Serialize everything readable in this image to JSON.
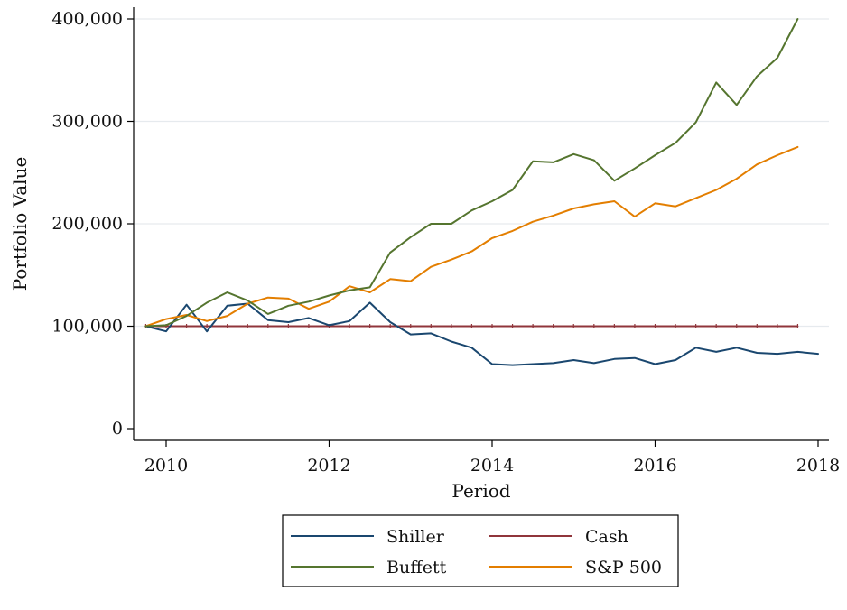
{
  "chart_data": {
    "type": "line",
    "title": "",
    "xlabel": "Period",
    "ylabel": "Portfolio Value",
    "xlim": [
      2009.75,
      2018.0
    ],
    "ylim": [
      0,
      400000
    ],
    "x_ticks": [
      2010,
      2012,
      2014,
      2016,
      2018
    ],
    "x_tick_labels": [
      "2010",
      "2012",
      "2014",
      "2016",
      "2018"
    ],
    "y_ticks": [
      0,
      100000,
      200000,
      300000,
      400000
    ],
    "y_tick_labels": [
      "0",
      "100,000",
      "200,000",
      "300,000",
      "400,000"
    ],
    "grid": "horizontal",
    "legend_position": "bottom",
    "series": [
      {
        "name": "Shiller",
        "color": "#1a476f",
        "x": [
          2009.75,
          2010.0,
          2010.25,
          2010.5,
          2010.75,
          2011.0,
          2011.25,
          2011.5,
          2011.75,
          2012.0,
          2012.25,
          2012.5,
          2012.75,
          2013.0,
          2013.25,
          2013.5,
          2013.75,
          2014.0,
          2014.25,
          2014.5,
          2014.75,
          2015.0,
          2015.25,
          2015.5,
          2015.75,
          2016.0,
          2016.25,
          2016.5,
          2016.75,
          2017.0,
          2017.25,
          2017.5,
          2017.75,
          2018.0
        ],
        "y": [
          100000,
          95000,
          121000,
          95000,
          120000,
          122000,
          106000,
          104000,
          108000,
          101000,
          105000,
          123000,
          104000,
          92000,
          93000,
          85000,
          79000,
          63000,
          62000,
          63000,
          64000,
          67000,
          64000,
          68000,
          69000,
          63000,
          67000,
          79000,
          75000,
          79000,
          74000,
          73000,
          75000,
          73000
        ]
      },
      {
        "name": "Cash",
        "color": "#90353b",
        "x": [
          2009.75,
          2010.0,
          2010.25,
          2010.5,
          2010.75,
          2011.0,
          2011.25,
          2011.5,
          2011.75,
          2012.0,
          2012.25,
          2012.5,
          2012.75,
          2013.0,
          2013.25,
          2013.5,
          2013.75,
          2014.0,
          2014.25,
          2014.5,
          2014.75,
          2015.0,
          2015.25,
          2015.5,
          2015.75,
          2016.0,
          2016.25,
          2016.5,
          2016.75,
          2017.0,
          2017.25,
          2017.5,
          2017.75
        ],
        "y": [
          100000,
          100000,
          100000,
          100000,
          100000,
          100000,
          100000,
          100000,
          100000,
          100000,
          100000,
          100000,
          100000,
          100000,
          100000,
          100000,
          100000,
          100000,
          100000,
          100000,
          100000,
          100000,
          100000,
          100000,
          100000,
          100000,
          100000,
          100000,
          100000,
          100000,
          100000,
          100000,
          100000
        ]
      },
      {
        "name": "Buffett",
        "color": "#55752f",
        "x": [
          2009.75,
          2010.0,
          2010.25,
          2010.5,
          2010.75,
          2011.0,
          2011.25,
          2011.5,
          2011.75,
          2012.0,
          2012.25,
          2012.5,
          2012.75,
          2013.0,
          2013.25,
          2013.5,
          2013.75,
          2014.0,
          2014.25,
          2014.5,
          2014.75,
          2015.0,
          2015.25,
          2015.5,
          2015.75,
          2016.0,
          2016.25,
          2016.5,
          2016.75,
          2017.0,
          2017.25,
          2017.5,
          2017.75
        ],
        "y": [
          100000,
          101000,
          110000,
          123000,
          133000,
          125000,
          112000,
          120000,
          124000,
          130000,
          135000,
          138000,
          172000,
          187000,
          200000,
          200000,
          213000,
          222000,
          233000,
          261000,
          260000,
          268000,
          262000,
          242000,
          254000,
          267000,
          279000,
          299000,
          338000,
          316000,
          344000,
          362000,
          400000
        ]
      },
      {
        "name": "S&P 500",
        "color": "#e37e00",
        "x": [
          2009.75,
          2010.0,
          2010.25,
          2010.5,
          2010.75,
          2011.0,
          2011.25,
          2011.5,
          2011.75,
          2012.0,
          2012.25,
          2012.5,
          2012.75,
          2013.0,
          2013.25,
          2013.5,
          2013.75,
          2014.0,
          2014.25,
          2014.5,
          2014.75,
          2015.0,
          2015.25,
          2015.5,
          2015.75,
          2016.0,
          2016.25,
          2016.5,
          2016.75,
          2017.0,
          2017.25,
          2017.5,
          2017.75
        ],
        "y": [
          100000,
          107000,
          111000,
          105000,
          110000,
          122000,
          128000,
          127000,
          117000,
          124000,
          139000,
          133000,
          146000,
          144000,
          158000,
          165000,
          173000,
          186000,
          193000,
          202000,
          208000,
          215000,
          219000,
          222000,
          207000,
          220000,
          217000,
          225000,
          233000,
          244000,
          258000,
          267000,
          275000
        ]
      }
    ],
    "legend_order": [
      "Shiller",
      "Cash",
      "Buffett",
      "S&P 500"
    ]
  }
}
